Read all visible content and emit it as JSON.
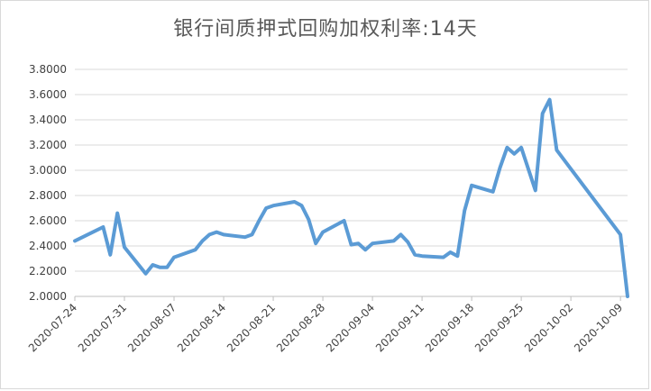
{
  "chart_data": {
    "type": "line",
    "title": "银行间质押式回购加权利率:14天",
    "xlabel": "",
    "ylabel": "",
    "ylim": [
      2.0,
      3.8
    ],
    "yticks": [
      "2.0000",
      "2.2000",
      "2.4000",
      "2.6000",
      "2.8000",
      "3.0000",
      "3.2000",
      "3.4000",
      "3.6000",
      "3.8000"
    ],
    "xticks": [
      "2020-07-24",
      "2020-07-31",
      "2020-08-07",
      "2020-08-14",
      "2020-08-21",
      "2020-08-28",
      "2020-09-04",
      "2020-09-11",
      "2020-09-18",
      "2020-09-25",
      "2020-10-02",
      "2020-10-09"
    ],
    "grid": "horizontal",
    "legend": "none",
    "line_color": "#5b9bd5",
    "series": [
      {
        "x": [
          "2020-07-24",
          "2020-07-28",
          "2020-07-29",
          "2020-07-30",
          "2020-07-31",
          "2020-08-03",
          "2020-08-04",
          "2020-08-05",
          "2020-08-06",
          "2020-08-07",
          "2020-08-10",
          "2020-08-11",
          "2020-08-12",
          "2020-08-13",
          "2020-08-14",
          "2020-08-17",
          "2020-08-18",
          "2020-08-19",
          "2020-08-20",
          "2020-08-21",
          "2020-08-24",
          "2020-08-25",
          "2020-08-26",
          "2020-08-27",
          "2020-08-28",
          "2020-08-31",
          "2020-09-01",
          "2020-09-02",
          "2020-09-03",
          "2020-09-04",
          "2020-09-07",
          "2020-09-08",
          "2020-09-09",
          "2020-09-10",
          "2020-09-11",
          "2020-09-14",
          "2020-09-15",
          "2020-09-16",
          "2020-09-17",
          "2020-09-18",
          "2020-09-21",
          "2020-09-22",
          "2020-09-23",
          "2020-09-24",
          "2020-09-25",
          "2020-09-27",
          "2020-09-28",
          "2020-09-29",
          "2020-09-30",
          "2020-10-09",
          "2020-10-10"
        ],
        "values": [
          2.44,
          2.55,
          2.33,
          2.66,
          2.39,
          2.18,
          2.25,
          2.23,
          2.23,
          2.31,
          2.37,
          2.44,
          2.49,
          2.51,
          2.49,
          2.47,
          2.49,
          2.6,
          2.7,
          2.72,
          2.75,
          2.72,
          2.61,
          2.42,
          2.51,
          2.6,
          2.41,
          2.42,
          2.37,
          2.42,
          2.44,
          2.49,
          2.43,
          2.33,
          2.32,
          2.31,
          2.35,
          2.32,
          2.68,
          2.88,
          2.83,
          3.02,
          3.18,
          3.13,
          3.18,
          2.84,
          3.45,
          3.56,
          3.16,
          2.49,
          2.0
        ]
      }
    ]
  }
}
